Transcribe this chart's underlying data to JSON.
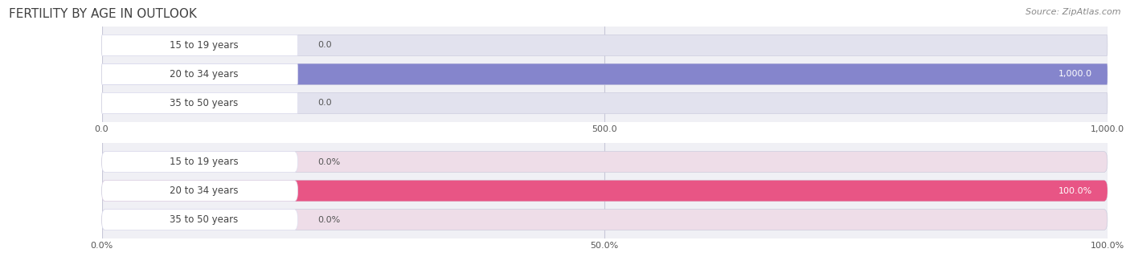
{
  "title": "FERTILITY BY AGE IN OUTLOOK",
  "source": "Source: ZipAtlas.com",
  "top_chart": {
    "categories": [
      "15 to 19 years",
      "20 to 34 years",
      "35 to 50 years"
    ],
    "values": [
      0.0,
      1000.0,
      0.0
    ],
    "xlim": [
      0,
      1000
    ],
    "xticks": [
      0.0,
      500.0,
      1000.0
    ],
    "xtick_labels": [
      "0.0",
      "500.0",
      "1,000.0"
    ],
    "bar_color_full": "#8585cc",
    "bar_color_empty": "#b8b8e0",
    "label_values": [
      "0.0",
      "1,000.0",
      "0.0"
    ],
    "bg_bar_color": "#e2e2ee"
  },
  "bottom_chart": {
    "categories": [
      "15 to 19 years",
      "20 to 34 years",
      "35 to 50 years"
    ],
    "values": [
      0.0,
      100.0,
      0.0
    ],
    "xlim": [
      0,
      100
    ],
    "xticks": [
      0.0,
      50.0,
      100.0
    ],
    "xtick_labels": [
      "0.0%",
      "50.0%",
      "100.0%"
    ],
    "bar_color_full": "#e85585",
    "bar_color_empty": "#f0aac0",
    "label_values": [
      "0.0%",
      "100.0%",
      "0.0%"
    ],
    "bg_bar_color": "#eedde8"
  },
  "figure_bg": "#ffffff",
  "axes_bg": "#f0f0f5",
  "title_fontsize": 11,
  "source_fontsize": 8,
  "label_fontsize": 8,
  "tick_fontsize": 8,
  "cat_fontsize": 8.5
}
